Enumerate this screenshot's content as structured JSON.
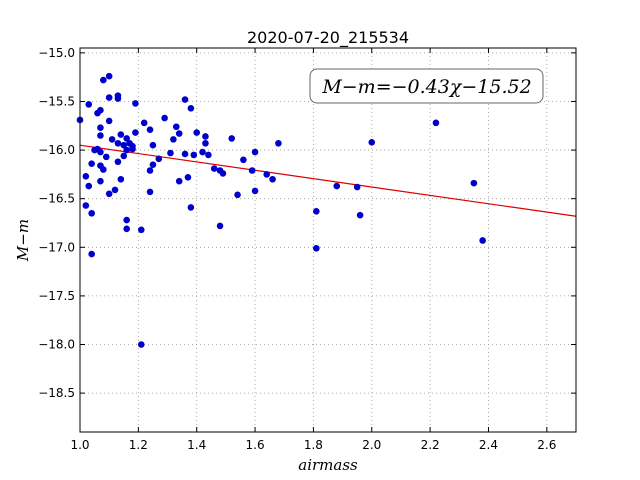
{
  "chart_data": {
    "type": "scatter",
    "title": "2020-07-20_215534",
    "xlabel": "airmass",
    "ylabel": "M−m",
    "xlim": [
      1.0,
      2.7
    ],
    "ylim": [
      -18.9,
      -14.95
    ],
    "y_inverted": true,
    "grid": true,
    "x_ticks": [
      1.0,
      1.2,
      1.4,
      1.6,
      1.8,
      2.0,
      2.2,
      2.4,
      2.6
    ],
    "x_tick_labels": [
      "1.0",
      "1.2",
      "1.4",
      "1.6",
      "1.8",
      "2.0",
      "2.2",
      "2.4",
      "2.6"
    ],
    "y_ticks": [
      -15.0,
      -15.5,
      -16.0,
      -16.5,
      -17.0,
      -17.5,
      -18.0,
      -18.5
    ],
    "y_tick_labels": [
      "−15.0",
      "−15.5",
      "−16.0",
      "−16.5",
      "−17.0",
      "−17.5",
      "−18.0",
      "−18.5"
    ],
    "annotation": "M−m=−0.43χ−15.52",
    "fit": {
      "slope": -0.43,
      "intercept": -15.52
    },
    "colors": {
      "points": "#0000cc",
      "fit_line": "#dd0000",
      "grid": "#999999"
    },
    "points": [
      [
        1.0,
        -15.69
      ],
      [
        1.03,
        -15.53
      ],
      [
        1.02,
        -16.27
      ],
      [
        1.02,
        -16.57
      ],
      [
        1.03,
        -16.37
      ],
      [
        1.04,
        -16.65
      ],
      [
        1.04,
        -16.14
      ],
      [
        1.04,
        -17.07
      ],
      [
        1.05,
        -16.0
      ],
      [
        1.06,
        -15.99
      ],
      [
        1.06,
        -15.62
      ],
      [
        1.07,
        -16.02
      ],
      [
        1.07,
        -15.59
      ],
      [
        1.07,
        -15.77
      ],
      [
        1.07,
        -15.85
      ],
      [
        1.07,
        -16.16
      ],
      [
        1.08,
        -16.2
      ],
      [
        1.07,
        -16.32
      ],
      [
        1.08,
        -15.28
      ],
      [
        1.09,
        -16.07
      ],
      [
        1.1,
        -15.24
      ],
      [
        1.1,
        -15.46
      ],
      [
        1.1,
        -15.7
      ],
      [
        1.1,
        -16.45
      ],
      [
        1.11,
        -15.89
      ],
      [
        1.12,
        -16.41
      ],
      [
        1.13,
        -15.44
      ],
      [
        1.13,
        -15.47
      ],
      [
        1.13,
        -15.93
      ],
      [
        1.13,
        -16.12
      ],
      [
        1.14,
        -16.3
      ],
      [
        1.14,
        -15.84
      ],
      [
        1.15,
        -15.95
      ],
      [
        1.15,
        -16.06
      ],
      [
        1.16,
        -15.88
      ],
      [
        1.16,
        -16.0
      ],
      [
        1.16,
        -16.72
      ],
      [
        1.16,
        -16.81
      ],
      [
        1.17,
        -15.93
      ],
      [
        1.18,
        -15.99
      ],
      [
        1.18,
        -15.96
      ],
      [
        1.19,
        -15.82
      ],
      [
        1.19,
        -15.52
      ],
      [
        1.21,
        -16.82
      ],
      [
        1.21,
        -18.0
      ],
      [
        1.22,
        -15.72
      ],
      [
        1.24,
        -15.79
      ],
      [
        1.24,
        -16.43
      ],
      [
        1.24,
        -16.21
      ],
      [
        1.25,
        -16.15
      ],
      [
        1.25,
        -15.95
      ],
      [
        1.27,
        -16.09
      ],
      [
        1.29,
        -15.67
      ],
      [
        1.31,
        -16.03
      ],
      [
        1.32,
        -15.89
      ],
      [
        1.33,
        -15.76
      ],
      [
        1.34,
        -15.83
      ],
      [
        1.34,
        -16.32
      ],
      [
        1.36,
        -15.48
      ],
      [
        1.36,
        -16.04
      ],
      [
        1.37,
        -16.28
      ],
      [
        1.38,
        -15.57
      ],
      [
        1.38,
        -16.59
      ],
      [
        1.39,
        -16.05
      ],
      [
        1.4,
        -15.82
      ],
      [
        1.42,
        -16.02
      ],
      [
        1.43,
        -15.86
      ],
      [
        1.43,
        -15.93
      ],
      [
        1.44,
        -16.05
      ],
      [
        1.46,
        -16.19
      ],
      [
        1.48,
        -16.21
      ],
      [
        1.48,
        -16.78
      ],
      [
        1.49,
        -16.24
      ],
      [
        1.52,
        -15.88
      ],
      [
        1.54,
        -16.46
      ],
      [
        1.56,
        -16.1
      ],
      [
        1.59,
        -16.21
      ],
      [
        1.6,
        -16.02
      ],
      [
        1.6,
        -16.42
      ],
      [
        1.64,
        -16.25
      ],
      [
        1.66,
        -16.3
      ],
      [
        1.68,
        -15.93
      ],
      [
        1.81,
        -16.63
      ],
      [
        1.81,
        -17.01
      ],
      [
        1.88,
        -16.37
      ],
      [
        1.95,
        -16.38
      ],
      [
        1.96,
        -16.67
      ],
      [
        2.0,
        -15.92
      ],
      [
        2.22,
        -15.72
      ],
      [
        2.35,
        -16.34
      ],
      [
        2.38,
        -16.93
      ]
    ]
  }
}
